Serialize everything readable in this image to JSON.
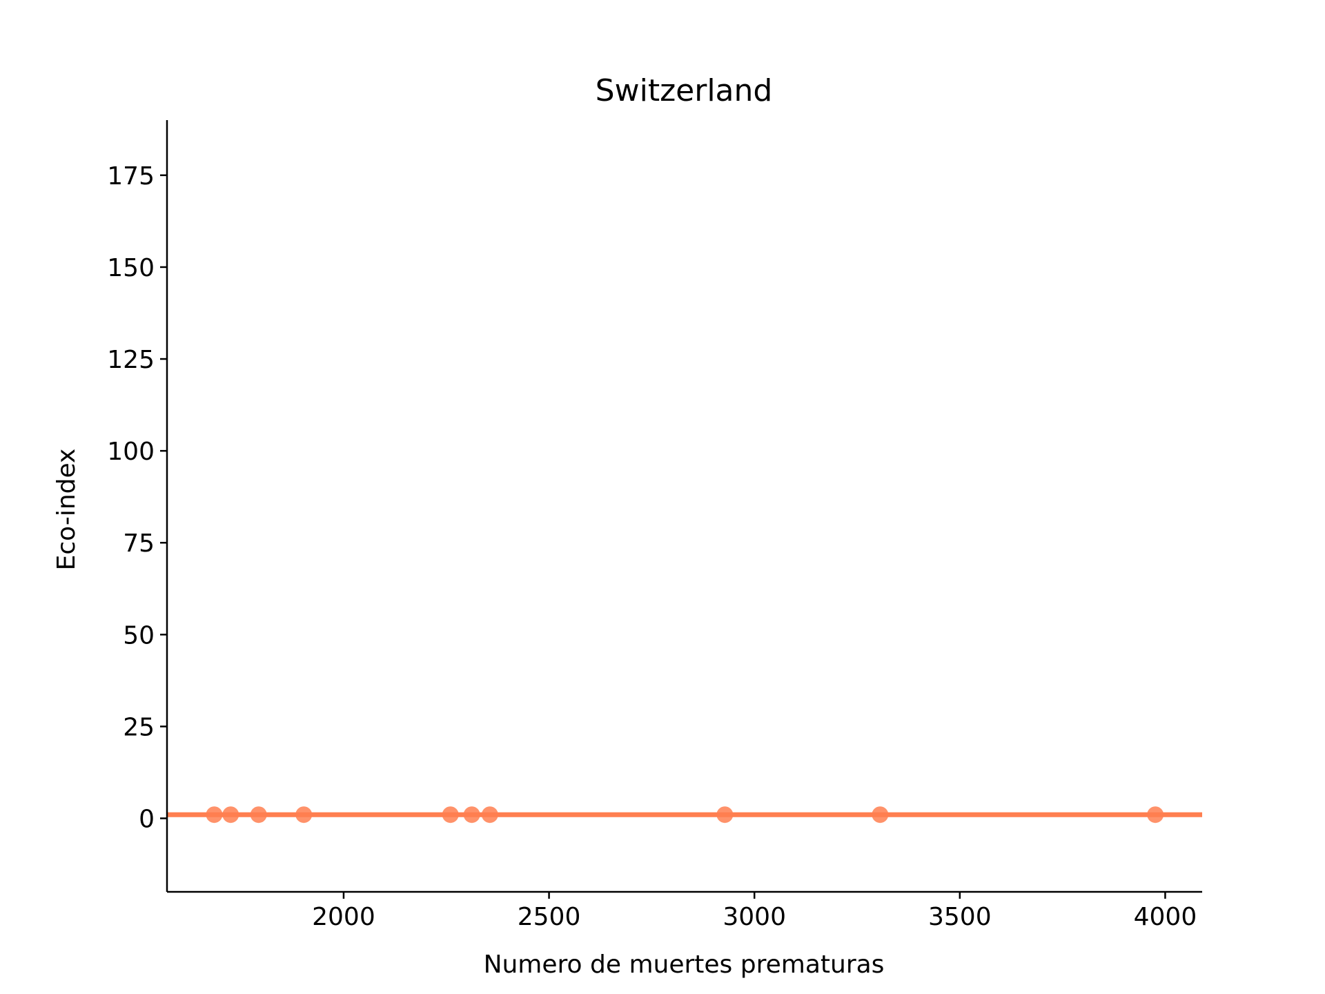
{
  "chart_data": {
    "type": "scatter",
    "title": "Switzerland",
    "xlabel": "Numero de muertes prematuras",
    "ylabel": "Eco-index",
    "xlim": [
      1570,
      4090
    ],
    "ylim": [
      -20,
      190
    ],
    "xticks": [
      2000,
      2500,
      3000,
      3500,
      4000
    ],
    "yticks": [
      0,
      25,
      50,
      75,
      100,
      125,
      150,
      175
    ],
    "grid": false,
    "colors": {
      "points": "#ff7f50",
      "line": "#ff7f50"
    },
    "points": [
      {
        "x": 1685,
        "y": 1
      },
      {
        "x": 1725,
        "y": 1
      },
      {
        "x": 1793,
        "y": 1
      },
      {
        "x": 1903,
        "y": 1
      },
      {
        "x": 2260,
        "y": 1
      },
      {
        "x": 2312,
        "y": 1
      },
      {
        "x": 2356,
        "y": 1
      },
      {
        "x": 2928,
        "y": 1
      },
      {
        "x": 3306,
        "y": 1
      },
      {
        "x": 3976,
        "y": 1
      }
    ],
    "fit_line": {
      "x": [
        1570,
        4090
      ],
      "y": [
        1,
        1
      ]
    }
  }
}
